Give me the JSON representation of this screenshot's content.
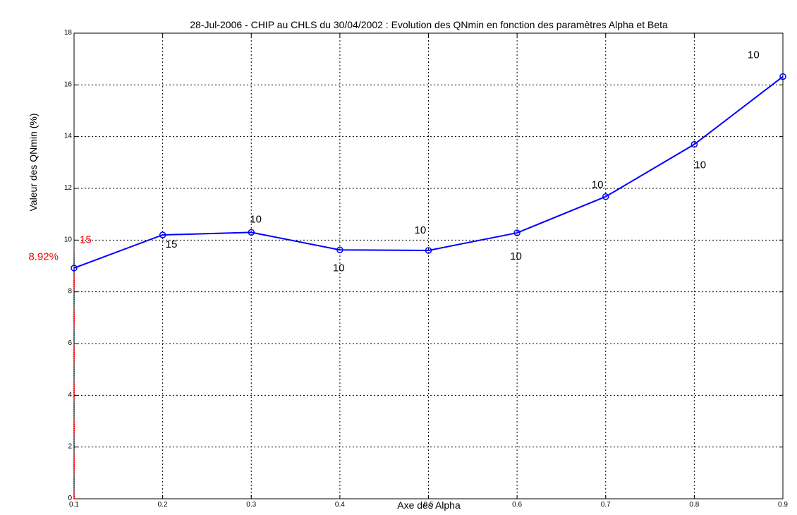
{
  "chart_data": {
    "type": "line",
    "title": "28-Jul-2006 - CHIP au CHLS du 30/04/2002 : Evolution des QNmin en fonction des paramètres Alpha et Beta",
    "xlabel": "Axe des Alpha",
    "ylabel": "Valeur des QNmin (%)",
    "xlim": [
      0.1,
      0.9
    ],
    "ylim": [
      0,
      18
    ],
    "x_ticks": [
      "0.1",
      "0.2",
      "0.3",
      "0.4",
      "0.5",
      "0.6",
      "0.7",
      "0.8",
      "0.9"
    ],
    "y_ticks": [
      "0",
      "2",
      "4",
      "6",
      "8",
      "10",
      "12",
      "14",
      "16",
      "18"
    ],
    "grid": true,
    "series": [
      {
        "color": "#0000ff",
        "marker": "circle",
        "x": [
          0.1,
          0.2,
          0.3,
          0.4,
          0.5,
          0.6,
          0.7,
          0.8,
          0.9
        ],
        "y": [
          8.92,
          10.2,
          10.3,
          9.62,
          9.6,
          10.28,
          11.68,
          13.7,
          16.32
        ],
        "labels": [
          "15",
          "15",
          "10",
          "10",
          "10",
          "10",
          "10",
          "10",
          "10"
        ]
      }
    ],
    "highlight": {
      "color": "#ff0000",
      "x": 0.1,
      "y": 8.92,
      "value_label": "8.92%",
      "beta_label": "15"
    }
  }
}
